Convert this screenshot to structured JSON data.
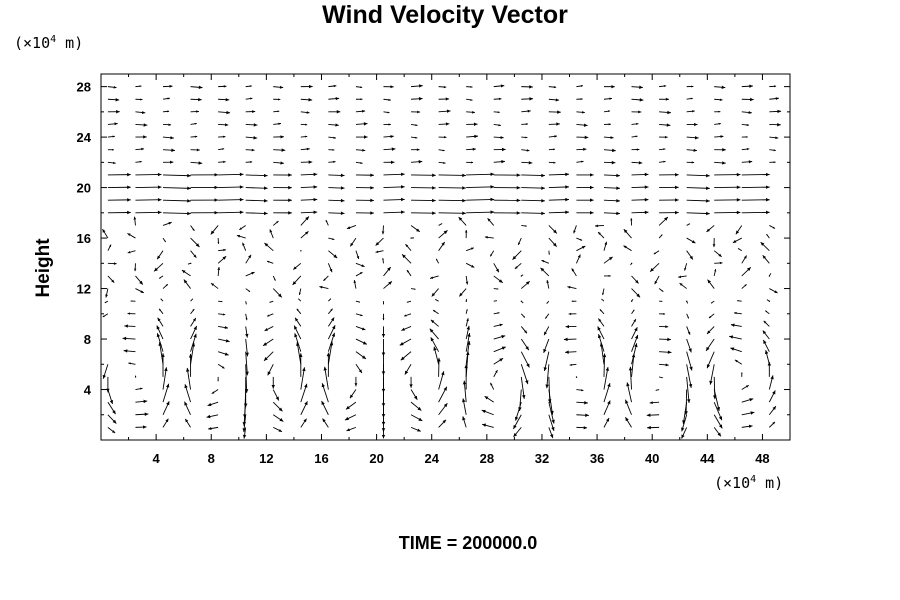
{
  "chart_data": {
    "type": "vector",
    "title": "Wind Velocity Vector",
    "ylabel": "Height",
    "xlabel": "",
    "x_unit": {
      "prefix": "(×10",
      "exponent": "4",
      "suffix": " m)"
    },
    "y_unit": {
      "prefix": "(×10",
      "exponent": "4",
      "suffix": " m)"
    },
    "xlim": [
      0,
      50
    ],
    "ylim": [
      0,
      29
    ],
    "x_ticks": [
      4,
      8,
      12,
      16,
      20,
      24,
      28,
      32,
      36,
      40,
      44,
      48
    ],
    "y_ticks": [
      4,
      8,
      12,
      16,
      20,
      24,
      28
    ],
    "grid": false,
    "legend": "none",
    "annotation": "TIME = 200000.0",
    "colors": {
      "vectors": "#000000",
      "axes": "#000000",
      "background": "#ffffff"
    }
  }
}
